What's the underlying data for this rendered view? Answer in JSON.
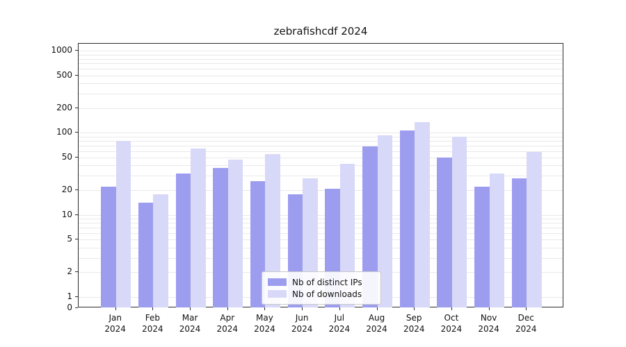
{
  "title": "zebrafishcdf 2024",
  "chart_data": {
    "type": "bar",
    "title": "zebrafishcdf 2024",
    "categories": [
      "Jan 2024",
      "Feb 2024",
      "Mar 2024",
      "Apr 2024",
      "May 2024",
      "Jun 2024",
      "Jul 2024",
      "Aug 2024",
      "Sep 2024",
      "Oct 2024",
      "Nov 2024",
      "Dec 2024"
    ],
    "x_tick_months": [
      "Jan",
      "Feb",
      "Mar",
      "Apr",
      "May",
      "Jun",
      "Jul",
      "Aug",
      "Sep",
      "Oct",
      "Nov",
      "Dec"
    ],
    "x_tick_year": "2024",
    "series": [
      {
        "name": "Nb of distinct IPs",
        "color": "#9d9df0",
        "values": [
          22,
          14,
          32,
          37,
          26,
          18,
          21,
          68,
          107,
          50,
          22,
          28
        ]
      },
      {
        "name": "Nb of downloads",
        "color": "#d8d8f8",
        "values": [
          80,
          18,
          65,
          47,
          55,
          28,
          42,
          93,
          135,
          90,
          32,
          58
        ]
      }
    ],
    "yscale": "symlog",
    "y_ticks": [
      0,
      1,
      2,
      5,
      10,
      20,
      50,
      100,
      200,
      500,
      1000
    ],
    "ylim": [
      0,
      1200
    ],
    "grid": true,
    "legend_position": "lower center"
  },
  "legend": {
    "items": [
      {
        "label": "Nb of distinct IPs",
        "color": "#9d9df0"
      },
      {
        "label": "Nb of downloads",
        "color": "#d8d8f8"
      }
    ]
  }
}
